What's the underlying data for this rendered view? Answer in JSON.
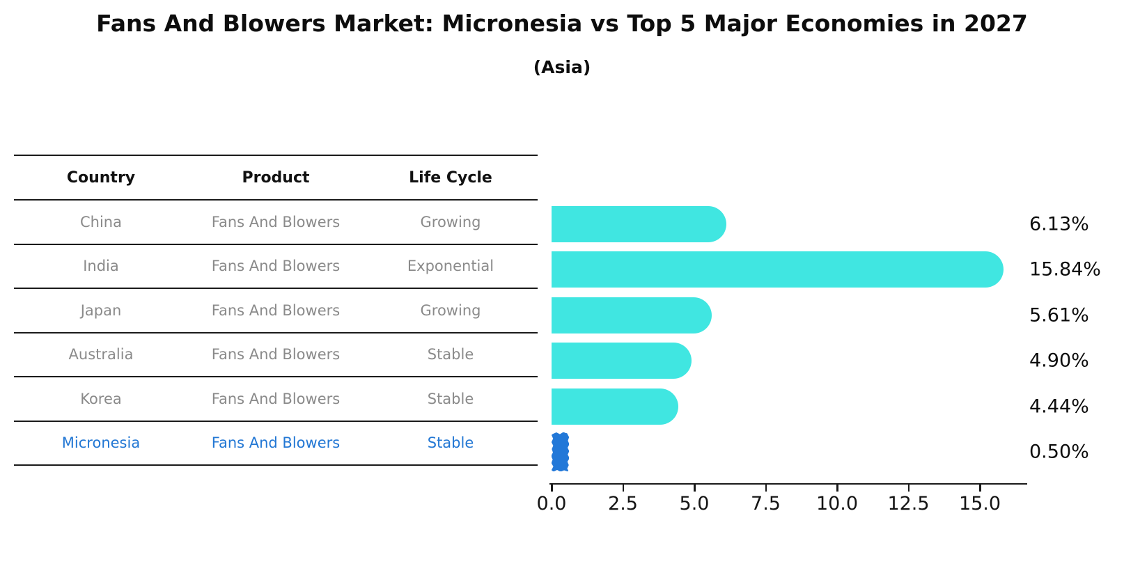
{
  "title": "Fans And Blowers Market: Micronesia vs Top 5 Major Economies in 2027",
  "subtitle": "(Asia)",
  "colors": {
    "bar": "#40e6e1",
    "highlight_bar": "#2278d8",
    "row_text": "#8a8a8a",
    "highlight_text": "#2277d4",
    "line": "#1a1a1a"
  },
  "table": {
    "headers": [
      "Country",
      "Product",
      "Life Cycle"
    ],
    "rows": [
      {
        "country": "China",
        "product": "Fans And Blowers",
        "life_cycle": "Growing",
        "highlight": false
      },
      {
        "country": "India",
        "product": "Fans And Blowers",
        "life_cycle": "Exponential",
        "highlight": false
      },
      {
        "country": "Japan",
        "product": "Fans And Blowers",
        "life_cycle": "Growing",
        "highlight": false
      },
      {
        "country": "Australia",
        "product": "Fans And Blowers",
        "life_cycle": "Stable",
        "highlight": false
      },
      {
        "country": "Korea",
        "product": "Fans And Blowers",
        "life_cycle": "Stable",
        "highlight": false
      },
      {
        "country": "Micronesia",
        "product": "Fans And Blowers",
        "life_cycle": "Stable",
        "highlight": true
      }
    ]
  },
  "chart_data": {
    "type": "bar",
    "orientation": "horizontal",
    "title": "Fans And Blowers Market: Micronesia vs Top 5 Major Economies in 2027",
    "subtitle": "(Asia)",
    "categories": [
      "China",
      "India",
      "Japan",
      "Australia",
      "Korea",
      "Micronesia"
    ],
    "values": [
      6.13,
      15.84,
      5.61,
      4.9,
      4.44,
      0.5
    ],
    "value_labels": [
      "6.13%",
      "15.84%",
      "5.61%",
      "4.90%",
      "4.44%",
      "0.50%"
    ],
    "highlight_index": 5,
    "x_ticks": [
      {
        "value": 0,
        "label": "0.0"
      },
      {
        "value": 2.5,
        "label": "2.5"
      },
      {
        "value": 5,
        "label": "5.0"
      },
      {
        "value": 7.5,
        "label": "7.5"
      },
      {
        "value": 10,
        "label": "10.0"
      },
      {
        "value": 12.5,
        "label": "12.5"
      },
      {
        "value": 15,
        "label": "15.0"
      }
    ],
    "xlim": [
      0,
      16.7
    ],
    "grid": false,
    "legend": false
  }
}
